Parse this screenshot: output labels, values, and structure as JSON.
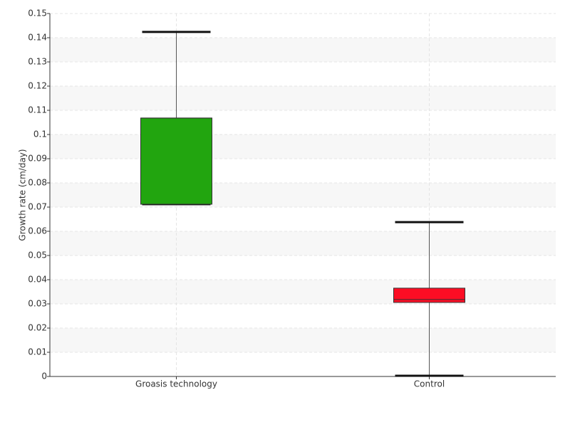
{
  "chart_data": {
    "type": "box",
    "y_label": "Growth rate (cm/day)",
    "categories": [
      "Groasis technology",
      "Control"
    ],
    "colors": [
      "#22a50f",
      "#fc0d24"
    ],
    "values": [
      {
        "min": 0.0712,
        "q1": 0.0712,
        "median": 0.1068,
        "q3": 0.1068,
        "max": 0.1424
      },
      {
        "min": 0.0003,
        "q1": 0.0306,
        "median": 0.0318,
        "q3": 0.0365,
        "max": 0.0638
      }
    ],
    "ylim": [
      0,
      0.15
    ],
    "yticks": [
      0,
      0.01,
      0.02,
      0.03,
      0.04,
      0.05,
      0.06,
      0.07,
      0.08,
      0.09,
      0.1,
      0.11,
      0.12,
      0.13,
      0.14,
      0.15
    ],
    "grid": true
  }
}
